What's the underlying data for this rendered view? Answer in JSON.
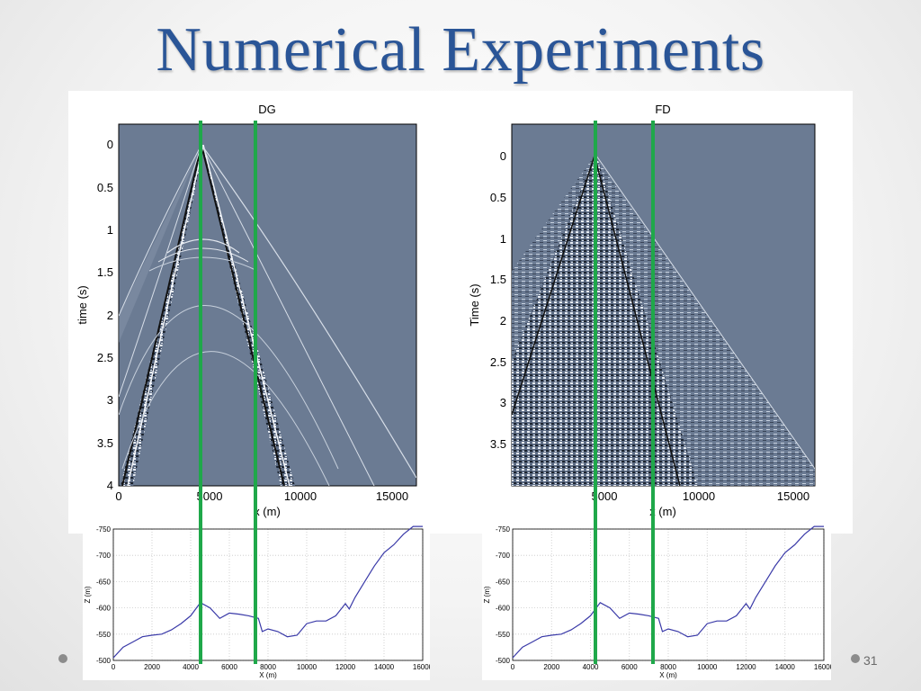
{
  "slide": {
    "title": "Numerical Experiments",
    "page_number": "31"
  },
  "seismic": [
    {
      "id": "dg",
      "title": "DG",
      "ylabel": "time (s)",
      "xlabel": "x (m)",
      "yticks": [
        "0",
        "0.5",
        "1",
        "1.5",
        "2",
        "2.5",
        "3",
        "3.5",
        "4"
      ],
      "xticks": [
        "0",
        "5000",
        "10000",
        "15000"
      ]
    },
    {
      "id": "fd",
      "title": "FD",
      "ylabel": "Time (s)",
      "xlabel": "x (m)",
      "yticks": [
        "0",
        "0.5",
        "1",
        "1.5",
        "2",
        "2.5",
        "3",
        "3.5"
      ],
      "xticks": [
        "5000",
        "10000",
        "15000"
      ]
    }
  ],
  "chart_data": [
    {
      "type": "line",
      "xlabel": "X (m)",
      "ylabel": "Z (m)",
      "xlim": [
        0,
        16000
      ],
      "ylim": [
        -500,
        -750
      ],
      "xticks": [
        "0",
        "2000",
        "4000",
        "6000",
        "8000",
        "10000",
        "12000",
        "14000",
        "16000"
      ],
      "yticks": [
        "-750",
        "-700",
        "-650",
        "-600",
        "-550",
        "-500"
      ],
      "grid": true,
      "series": [
        {
          "color": "#3a3aa8",
          "x": [
            0,
            500,
            1000,
            1500,
            2000,
            2500,
            3000,
            3500,
            4000,
            4500,
            5000,
            5500,
            6000,
            6500,
            7000,
            7500,
            7700,
            8000,
            8500,
            9000,
            9500,
            10000,
            10500,
            11000,
            11500,
            12000,
            12200,
            12500,
            13000,
            13500,
            14000,
            14500,
            15000,
            15500,
            16000
          ],
          "y": [
            -505,
            -525,
            -535,
            -545,
            -548,
            -550,
            -558,
            -570,
            -585,
            -610,
            -600,
            -580,
            -590,
            -588,
            -585,
            -580,
            -555,
            -560,
            -555,
            -545,
            -548,
            -570,
            -575,
            -575,
            -585,
            -608,
            -598,
            -620,
            -650,
            -680,
            -705,
            -720,
            -740,
            -755,
            -755
          ]
        }
      ]
    },
    {
      "type": "line",
      "xlabel": "X (m)",
      "ylabel": "Z (m)",
      "xlim": [
        0,
        16000
      ],
      "ylim": [
        -500,
        -750
      ],
      "xticks": [
        "0",
        "2000",
        "4000",
        "6000",
        "8000",
        "10000",
        "12000",
        "14000",
        "16000"
      ],
      "yticks": [
        "-750",
        "-700",
        "-650",
        "-600",
        "-550",
        "-500"
      ],
      "grid": true,
      "series": [
        {
          "color": "#3a3aa8",
          "x": [
            0,
            500,
            1000,
            1500,
            2000,
            2500,
            3000,
            3500,
            4000,
            4500,
            5000,
            5500,
            6000,
            6500,
            7000,
            7500,
            7700,
            8000,
            8500,
            9000,
            9500,
            10000,
            10500,
            11000,
            11500,
            12000,
            12200,
            12500,
            13000,
            13500,
            14000,
            14500,
            15000,
            15500,
            16000
          ],
          "y": [
            -505,
            -525,
            -535,
            -545,
            -548,
            -550,
            -558,
            -570,
            -585,
            -610,
            -600,
            -580,
            -590,
            -588,
            -585,
            -580,
            -555,
            -560,
            -555,
            -545,
            -548,
            -570,
            -575,
            -575,
            -585,
            -608,
            -598,
            -620,
            -650,
            -680,
            -705,
            -720,
            -740,
            -755,
            -755
          ]
        }
      ]
    }
  ],
  "colors": {
    "title": "#2a5597",
    "seismic_bg": "#6b7b93",
    "marker": "#1fa84a",
    "profile_line": "#3a3aa8"
  }
}
